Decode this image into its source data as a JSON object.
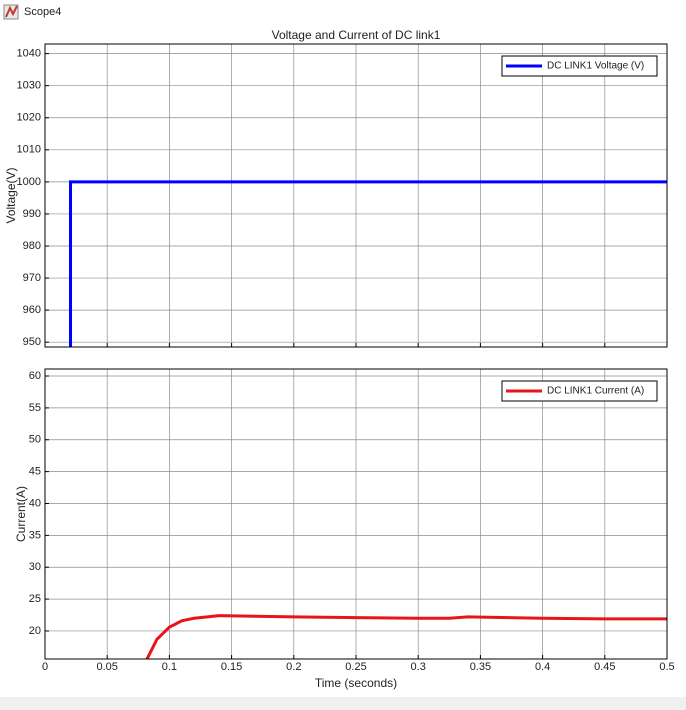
{
  "window": {
    "title": "Scope4"
  },
  "chart_data": [
    {
      "type": "line",
      "title": "Voltage and Current of DC link1",
      "ylabel": "Voltage(V)",
      "xlim": [
        0,
        0.5
      ],
      "xticks": [
        0,
        0.05,
        0.1,
        0.15,
        0.2,
        0.25,
        0.3,
        0.35,
        0.4,
        0.45,
        0.5
      ],
      "show_xtick_labels": false,
      "ylim": [
        948.5,
        1043
      ],
      "yticks": [
        950,
        960,
        970,
        980,
        990,
        1000,
        1010,
        1020,
        1030,
        1040
      ],
      "grid": true,
      "legend": "upper right",
      "series": [
        {
          "name": "DC LINK1 Voltage (V)",
          "color": "#0000ff",
          "x": [
            0.0205,
            0.0205,
            0.5
          ],
          "values": [
            948.5,
            1000,
            1000
          ]
        }
      ]
    },
    {
      "type": "line",
      "ylabel": "Current(A)",
      "xlabel": "Time (seconds)",
      "xlim": [
        0,
        0.5
      ],
      "xticks": [
        0,
        0.05,
        0.1,
        0.15,
        0.2,
        0.25,
        0.3,
        0.35,
        0.4,
        0.45,
        0.5
      ],
      "show_xtick_labels": true,
      "ylim": [
        15.6,
        61.1
      ],
      "yticks": [
        20,
        25,
        30,
        35,
        40,
        45,
        50,
        55,
        60
      ],
      "grid": true,
      "legend": "upper right",
      "series": [
        {
          "name": "DC LINK1 Current (A)",
          "color": "#e8141a",
          "x": [
            0.082,
            0.09,
            0.1,
            0.11,
            0.12,
            0.14,
            0.2,
            0.25,
            0.3,
            0.325,
            0.34,
            0.4,
            0.45,
            0.5
          ],
          "values": [
            15.6,
            18.7,
            20.6,
            21.6,
            22.0,
            22.4,
            22.2,
            22.1,
            22.0,
            22.0,
            22.2,
            22.0,
            21.9,
            21.9
          ]
        }
      ]
    }
  ]
}
